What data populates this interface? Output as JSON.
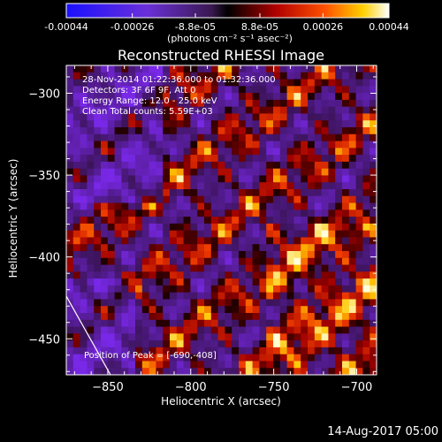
{
  "page": {
    "footer_date": "14-Aug-2017 05:00"
  },
  "colors": {
    "background": "#000000",
    "text": "#ffffff",
    "colormap": "red-temperature with blue/purple negatives"
  },
  "colorbar": {
    "tick_labels": [
      "-0.00044",
      "-0.00026",
      "-8.8e-05",
      "8.8e-05",
      "0.00026",
      "0.00044"
    ],
    "unit_label": "(photons cm⁻² s⁻¹ asec⁻²)",
    "range": [
      -0.00044,
      0.00044
    ]
  },
  "chart_data": {
    "type": "heatmap",
    "title": "Reconstructed RHESSI Image",
    "xlabel": "Heliocentric X (arcsec)",
    "ylabel": "Heliocentric Y (arcsec)",
    "xlim": [
      -875,
      -688
    ],
    "ylim": [
      -472,
      -283
    ],
    "x_ticks": [
      -850,
      -800,
      -750,
      -700
    ],
    "x_tick_labels": [
      "−850",
      "−800",
      "−750",
      "−700"
    ],
    "y_ticks": [
      -450,
      -400,
      -350,
      -300
    ],
    "y_tick_labels": [
      "−450",
      "−400",
      "−350",
      "−300"
    ],
    "info_lines": [
      "28-Nov-2014 01:22:36.000 to 01:32:36.000",
      "Detectors: 3F 6F 9F, Att 0",
      "Energy Range: 12.0 - 25.0 keV",
      "Clean     Total counts: 5.59E+03"
    ],
    "peak_label": "Position of Peak = [-690,-408]",
    "peak_position": [
      -690,
      -408
    ],
    "limb_visible": true
  }
}
